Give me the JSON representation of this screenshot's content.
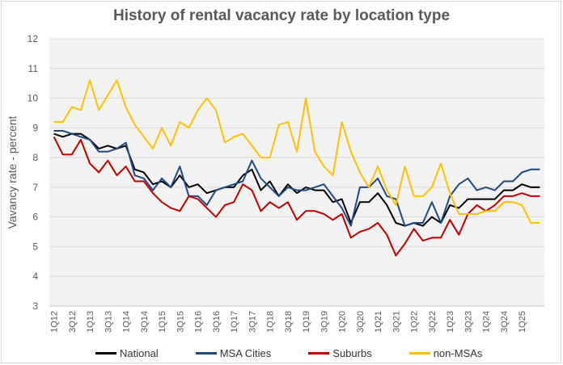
{
  "chart_data": {
    "type": "line",
    "title": "History  of rental  vacancy rate by location type",
    "xlabel": "",
    "ylabel": "Vavancy rate - percent",
    "ylim": [
      3,
      12
    ],
    "yticks": [
      "3",
      "4",
      "5",
      "6",
      "7",
      "8",
      "9",
      "10",
      "11",
      "12"
    ],
    "grid": true,
    "legend_position": "bottom",
    "x": [
      "1Q12",
      "2Q12",
      "3Q12",
      "4Q12",
      "1Q13",
      "2Q13",
      "3Q13",
      "4Q13",
      "1Q14",
      "2Q14",
      "3Q14",
      "4Q14",
      "1Q15",
      "2Q15",
      "3Q15",
      "4Q15",
      "1Q16",
      "2Q16",
      "3Q16",
      "4Q16",
      "1Q17",
      "2Q17",
      "3Q17",
      "4Q17",
      "1Q18",
      "2Q18",
      "3Q18",
      "4Q18",
      "1Q19",
      "2Q19",
      "3Q19",
      "4Q19",
      "1Q20",
      "2Q20",
      "3Q20",
      "4Q20",
      "1Q21",
      "2Q21",
      "3Q21",
      "4Q21",
      "1Q22",
      "2Q22",
      "3Q22",
      "4Q22",
      "1Q23",
      "2Q23",
      "3Q23",
      "4Q23",
      "1Q24",
      "2Q24",
      "3Q24",
      "4Q24",
      "1Q25",
      "2Q25",
      "3Q25"
    ],
    "xtick_labels": [
      "1Q12",
      "3Q12",
      "1Q13",
      "3Q13",
      "1Q14",
      "3Q14",
      "1Q15",
      "3Q15",
      "1Q16",
      "3Q16",
      "1Q17",
      "3Q17",
      "1Q18",
      "3Q18",
      "1Q19",
      "3Q19",
      "1Q20",
      "3Q20",
      "1Q21",
      "3Q21",
      "1Q22",
      "3Q22",
      "1Q23",
      "3Q23",
      "1Q24",
      "3Q24",
      "1Q25"
    ],
    "series": [
      {
        "name": "National",
        "color": "#000000",
        "values": [
          8.8,
          8.7,
          8.8,
          8.8,
          8.6,
          8.3,
          8.4,
          8.3,
          8.4,
          7.6,
          7.5,
          7.1,
          7.2,
          7.0,
          7.4,
          7.0,
          7.1,
          6.8,
          6.9,
          7.0,
          7.0,
          7.4,
          7.6,
          6.9,
          7.2,
          6.7,
          7.1,
          6.8,
          7.0,
          6.9,
          6.9,
          6.5,
          6.6,
          5.8,
          6.5,
          6.5,
          6.8,
          6.4,
          5.8,
          5.7,
          5.8,
          5.7,
          6.0,
          5.8,
          6.4,
          6.3,
          6.6,
          6.6,
          6.6,
          6.6,
          6.9,
          6.9,
          7.1,
          7.0,
          7.0
        ]
      },
      {
        "name": "MSA Cities",
        "color": "#1f497d",
        "values": [
          8.9,
          8.9,
          8.8,
          8.7,
          8.6,
          8.2,
          8.2,
          8.3,
          8.5,
          7.4,
          7.3,
          6.9,
          7.3,
          7.0,
          7.7,
          6.7,
          6.7,
          6.4,
          6.9,
          7.0,
          7.1,
          7.2,
          7.9,
          7.3,
          7.0,
          6.7,
          7.0,
          6.9,
          6.9,
          7.0,
          7.1,
          6.7,
          6.3,
          5.7,
          7.0,
          7.0,
          7.3,
          6.7,
          6.6,
          5.7,
          5.8,
          5.8,
          6.5,
          5.8,
          6.7,
          7.1,
          7.3,
          6.9,
          7.0,
          6.9,
          7.2,
          7.2,
          7.5,
          7.6,
          7.6
        ]
      },
      {
        "name": "Suburbs",
        "color": "#c00000",
        "values": [
          8.7,
          8.1,
          8.1,
          8.6,
          7.8,
          7.5,
          7.9,
          7.4,
          7.7,
          7.2,
          7.2,
          6.8,
          6.5,
          6.3,
          6.2,
          6.7,
          6.6,
          6.3,
          6.0,
          6.4,
          6.5,
          7.1,
          6.9,
          6.2,
          6.5,
          6.3,
          6.5,
          5.9,
          6.2,
          6.2,
          6.1,
          5.9,
          6.1,
          5.3,
          5.5,
          5.6,
          5.8,
          5.4,
          4.7,
          5.1,
          5.6,
          5.2,
          5.3,
          5.3,
          5.9,
          5.4,
          6.1,
          6.4,
          6.2,
          6.4,
          6.7,
          6.7,
          6.8,
          6.7,
          6.7
        ]
      },
      {
        "name": "non-MSAs",
        "color": "#ffc000",
        "values": [
          9.2,
          9.2,
          9.7,
          9.6,
          10.6,
          9.6,
          10.1,
          10.6,
          9.7,
          9.1,
          8.7,
          8.3,
          9.0,
          8.4,
          9.2,
          9.0,
          9.6,
          10.0,
          9.6,
          8.5,
          8.7,
          8.8,
          8.4,
          8.0,
          8.0,
          9.1,
          9.2,
          8.2,
          10.0,
          8.2,
          7.7,
          7.4,
          9.2,
          8.2,
          7.5,
          7.0,
          7.7,
          6.9,
          6.4,
          7.7,
          6.7,
          6.7,
          7.0,
          7.8,
          6.8,
          6.1,
          6.1,
          6.1,
          6.2,
          6.2,
          6.5,
          6.5,
          6.4,
          5.8,
          5.8
        ]
      }
    ]
  }
}
